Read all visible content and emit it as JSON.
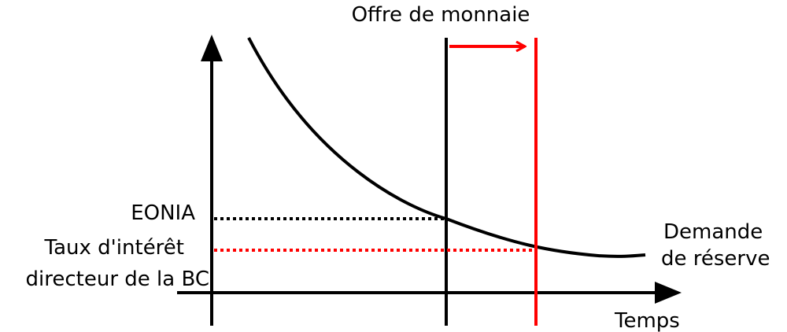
{
  "labels": {
    "money_supply": "Offre de monnaie",
    "eonia": "EONIA",
    "policy_rate_line1": "Taux d'intérêt",
    "policy_rate_line2": "directeur de la BC",
    "demand_line1": "Demande",
    "demand_line2": "de réserve",
    "x_axis": "Temps"
  },
  "colors": {
    "axis": "#000000",
    "demand_curve": "#000000",
    "supply_initial": "#000000",
    "supply_shifted": "#ff0000",
    "eonia_guide": "#000000",
    "policy_guide": "#ff0000",
    "shift_arrow": "#ff0000"
  }
}
